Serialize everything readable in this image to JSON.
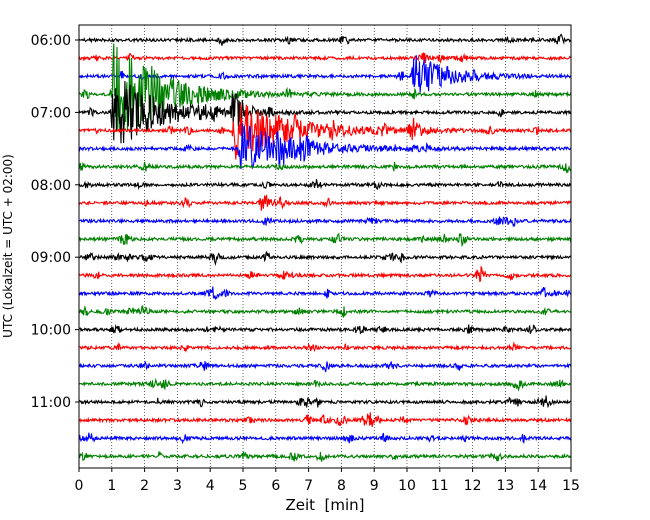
{
  "chart_data": {
    "type": "line",
    "title": "",
    "xlabel": "Zeit  [min]",
    "ylabel": "UTC (Lokalzeit = UTC + 02:00)",
    "xlim": [
      0,
      15
    ],
    "x_ticks": [
      "0",
      "1",
      "2",
      "3",
      "4",
      "5",
      "6",
      "7",
      "8",
      "9",
      "10",
      "11",
      "12",
      "13",
      "14",
      "15"
    ],
    "y_ticks": [
      "06:00",
      "07:00",
      "08:00",
      "09:00",
      "10:00",
      "11:00"
    ],
    "grid": "vertical dotted at each minute",
    "trace_interval_minutes": 15,
    "trace_count": 24,
    "first_trace_start": "06:00",
    "color_cycle": [
      "#000000",
      "#ff0000",
      "#0000ff",
      "#008000"
    ],
    "events": [
      {
        "trace_start": "06:45",
        "start_min": 0.95,
        "peak_amplitude": 1.0,
        "duration_min": 4.0
      },
      {
        "trace_start": "07:00",
        "start_min": 0.95,
        "peak_amplitude": 0.75,
        "duration_min": 3.6
      },
      {
        "trace_start": "07:00",
        "start_min": 4.6,
        "peak_amplitude": 0.5,
        "duration_min": 1.0
      },
      {
        "trace_start": "07:15",
        "start_min": 4.65,
        "peak_amplitude": 0.55,
        "duration_min": 5.0
      },
      {
        "trace_start": "07:30",
        "start_min": 4.85,
        "peak_amplitude": 0.48,
        "duration_min": 4.5
      },
      {
        "trace_start": "06:30",
        "start_min": 10.1,
        "peak_amplitude": 0.42,
        "duration_min": 3.0
      },
      {
        "trace_start": "07:15",
        "start_min": 10.0,
        "peak_amplitude": 0.18,
        "duration_min": 1.0
      }
    ]
  }
}
